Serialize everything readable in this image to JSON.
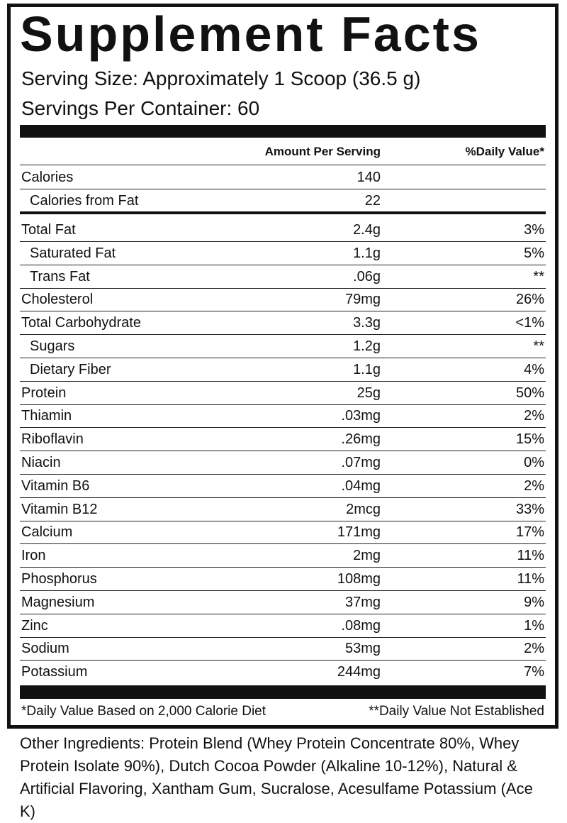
{
  "header": {
    "title": "Supplement Facts",
    "serving_size": "Serving Size: Approximately 1 Scoop (36.5 g)",
    "servings_per_container": "Servings Per Container: 60"
  },
  "table": {
    "columns": [
      "Amount Per Serving",
      "%Daily Value*"
    ],
    "calories": [
      {
        "name": "Calories",
        "amount": "140",
        "indent": false
      },
      {
        "name": "Calories from Fat",
        "amount": "22",
        "indent": true
      }
    ],
    "rows": [
      {
        "name": "Total Fat",
        "amount": "2.4g",
        "dv": "3%",
        "indent": false
      },
      {
        "name": "Saturated Fat",
        "amount": "1.1g",
        "dv": "5%",
        "indent": true
      },
      {
        "name": "Trans Fat",
        "amount": ".06g",
        "dv": "**",
        "indent": true
      },
      {
        "name": "Cholesterol",
        "amount": "79mg",
        "dv": "26%",
        "indent": false
      },
      {
        "name": "Total Carbohydrate",
        "amount": "3.3g",
        "dv": "<1%",
        "indent": false
      },
      {
        "name": "Sugars",
        "amount": "1.2g",
        "dv": "**",
        "indent": true
      },
      {
        "name": "Dietary Fiber",
        "amount": "1.1g",
        "dv": "4%",
        "indent": true
      },
      {
        "name": "Protein",
        "amount": "25g",
        "dv": "50%",
        "indent": false
      },
      {
        "name": "Thiamin",
        "amount": ".03mg",
        "dv": "2%",
        "indent": false
      },
      {
        "name": "Riboflavin",
        "amount": ".26mg",
        "dv": "15%",
        "indent": false
      },
      {
        "name": "Niacin",
        "amount": ".07mg",
        "dv": "0%",
        "indent": false
      },
      {
        "name": "Vitamin B6",
        "amount": ".04mg",
        "dv": "2%",
        "indent": false
      },
      {
        "name": "Vitamin B12",
        "amount": "2mcg",
        "dv": "33%",
        "indent": false
      },
      {
        "name": "Calcium",
        "amount": "171mg",
        "dv": "17%",
        "indent": false
      },
      {
        "name": "Iron",
        "amount": "2mg",
        "dv": "11%",
        "indent": false
      },
      {
        "name": "Phosphorus",
        "amount": "108mg",
        "dv": "11%",
        "indent": false
      },
      {
        "name": "Magnesium",
        "amount": "37mg",
        "dv": "9%",
        "indent": false
      },
      {
        "name": "Zinc",
        "amount": ".08mg",
        "dv": "1%",
        "indent": false
      },
      {
        "name": "Sodium",
        "amount": "53mg",
        "dv": "2%",
        "indent": false
      },
      {
        "name": "Potassium",
        "amount": "244mg",
        "dv": "7%",
        "indent": false
      }
    ],
    "footnotes": [
      "*Daily Value Based on 2,000 Calorie Diet",
      "**Daily Value Not Established"
    ]
  },
  "other_ingredients": "Other Ingredients: Protein Blend (Whey Protein Concentrate 80%, Whey Protein Isolate 90%), Dutch Cocoa Powder (Alkaline 10-12%), Natural & Artificial Flavoring, Xantham Gum, Sucralose, Acesulfame Potassium (Ace K)"
}
